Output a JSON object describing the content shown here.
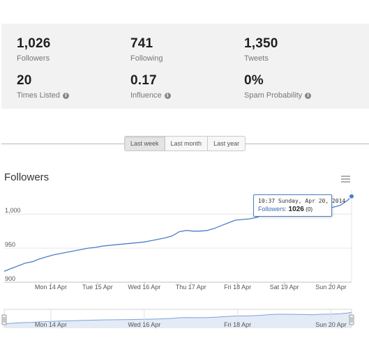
{
  "stats": [
    {
      "value": "1,026",
      "label": "Followers",
      "info": false
    },
    {
      "value": "741",
      "label": "Following",
      "info": false
    },
    {
      "value": "1,350",
      "label": "Tweets",
      "info": false
    },
    {
      "value": "20",
      "label": "Times Listed",
      "info": true
    },
    {
      "value": "0.17",
      "label": "Influence",
      "info": true
    },
    {
      "value": "0%",
      "label": "Spam Probability",
      "info": true
    }
  ],
  "range_buttons": {
    "week": "Last week",
    "month": "Last month",
    "year": "Last year",
    "active": "week"
  },
  "chart_title": "Followers",
  "tooltip": {
    "date": "10:37 Sunday, Apr 20, 2014",
    "label": "Followers:",
    "value": "1026",
    "change": "(0)"
  },
  "chart_data": {
    "type": "line",
    "title": "Followers",
    "xlabel": "",
    "ylabel": "",
    "ylim": [
      900,
      1035
    ],
    "yticks": [
      "1,000",
      "950",
      "900"
    ],
    "x_ticks": [
      "Mon 14 Apr",
      "Tue 15 Apr",
      "Wed 16 Apr",
      "Thu 17 Apr",
      "Fri 18 Apr",
      "Sat 19 Apr",
      "Sun 20 Apr"
    ],
    "navigator_ticks": [
      "Mon 14 Apr",
      "Wed 16 Apr",
      "Fri 18 Apr",
      "Sun 20 Apr"
    ],
    "series": [
      {
        "name": "Followers",
        "x": [
          13.0,
          13.15,
          13.3,
          13.45,
          13.6,
          13.75,
          13.9,
          14.05,
          14.2,
          14.35,
          14.5,
          14.65,
          14.8,
          14.95,
          15.1,
          15.25,
          15.4,
          15.55,
          15.7,
          15.85,
          16.0,
          16.15,
          16.3,
          16.45,
          16.6,
          16.75,
          16.9,
          17.05,
          17.2,
          17.35,
          17.5,
          17.65,
          17.8,
          17.95,
          18.1,
          18.25,
          18.4,
          18.55,
          18.7,
          18.85,
          19.0,
          19.15,
          19.3,
          19.45,
          19.6,
          19.75,
          19.9,
          20.05,
          20.2,
          20.35,
          20.44
        ],
        "y": [
          916,
          920,
          924,
          928,
          930,
          934,
          937,
          940,
          942,
          944,
          946,
          948,
          950,
          951,
          953,
          954,
          955,
          956,
          957,
          958,
          959,
          961,
          963,
          965,
          968,
          974,
          976,
          975,
          975,
          976,
          979,
          983,
          987,
          991,
          992,
          993,
          995,
          999,
          1005,
          1008,
          1008,
          1007,
          1006,
          1005,
          1003,
          1007,
          1009,
          1010,
          1013,
          1020,
          1026
        ]
      }
    ],
    "colors": {
      "line": "#4a7fc8",
      "grid": "#e6e6e6",
      "nav_fill": "#e3ebf7"
    }
  }
}
